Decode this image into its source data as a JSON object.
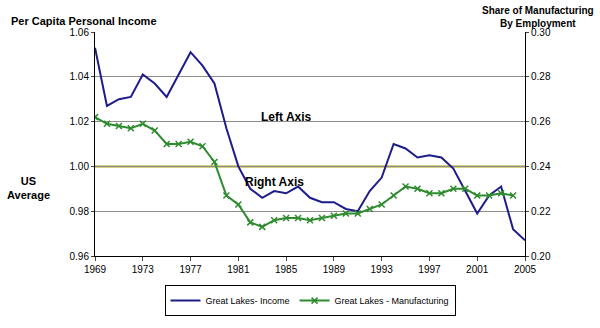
{
  "chart_data": {
    "type": "line",
    "y_label": "Per Capita Personal Income",
    "y2_label": "Share of Manufacturing\nBy Employment",
    "x": [
      1969,
      1970,
      1971,
      1972,
      1973,
      1974,
      1975,
      1976,
      1977,
      1978,
      1979,
      1980,
      1981,
      1982,
      1983,
      1984,
      1985,
      1986,
      1987,
      1988,
      1989,
      1990,
      1991,
      1992,
      1993,
      1994,
      1995,
      1996,
      1997,
      1998,
      1999,
      2000,
      2001,
      2002,
      2003,
      2004,
      2005
    ],
    "series": [
      {
        "name": "Great Lakes- Income",
        "color": "#1c1c8a",
        "axis": "y",
        "line_style": "solid",
        "marker": "none",
        "values": [
          1.053,
          1.027,
          1.03,
          1.031,
          1.041,
          1.037,
          1.031,
          1.041,
          1.051,
          1.045,
          1.037,
          1.017,
          1.0,
          0.99,
          0.986,
          0.989,
          0.988,
          0.991,
          0.986,
          0.984,
          0.984,
          0.981,
          0.98,
          0.989,
          0.995,
          1.01,
          1.008,
          1.004,
          1.005,
          1.004,
          0.999,
          0.989,
          0.979,
          0.987,
          0.991,
          0.972,
          0.967
        ]
      },
      {
        "name": "Great Lakes - Manufacturing",
        "color": "#2e8b2e",
        "axis": "y2",
        "line_style": "solid",
        "marker": "x",
        "values": [
          0.262,
          0.259,
          0.258,
          0.257,
          0.259,
          0.256,
          0.25,
          0.25,
          0.251,
          0.249,
          0.242,
          0.227,
          0.223,
          0.215,
          0.213,
          0.216,
          0.217,
          0.217,
          0.216,
          0.217,
          0.218,
          0.219,
          0.219,
          0.221,
          0.223,
          0.227,
          0.231,
          0.23,
          0.228,
          0.228,
          0.23,
          0.23,
          0.227,
          0.227,
          0.228,
          0.227,
          null
        ]
      }
    ],
    "xlim": [
      1969,
      2005
    ],
    "xticks": [
      1969,
      1973,
      1977,
      1981,
      1985,
      1989,
      1993,
      1997,
      2001,
      2005
    ],
    "ylim": [
      0.96,
      1.06
    ],
    "yticks": [
      0.96,
      0.98,
      {
        "value": 1,
        "label": "1.00"
      },
      1.02,
      1.04,
      1.06
    ],
    "y2lim": [
      0.2,
      0.3
    ],
    "y2ticks": [
      {
        "value": 0.2,
        "label": "0.20"
      },
      0.22,
      0.24,
      0.26,
      0.28,
      {
        "value": 0.3,
        "label": "0.30"
      }
    ],
    "reference": {
      "value": 1,
      "label": "US\nAverage",
      "color": "#a8a000"
    },
    "annotations": [
      "Left Axis",
      "Right Axis"
    ],
    "grid": true,
    "legend": "bottom"
  }
}
